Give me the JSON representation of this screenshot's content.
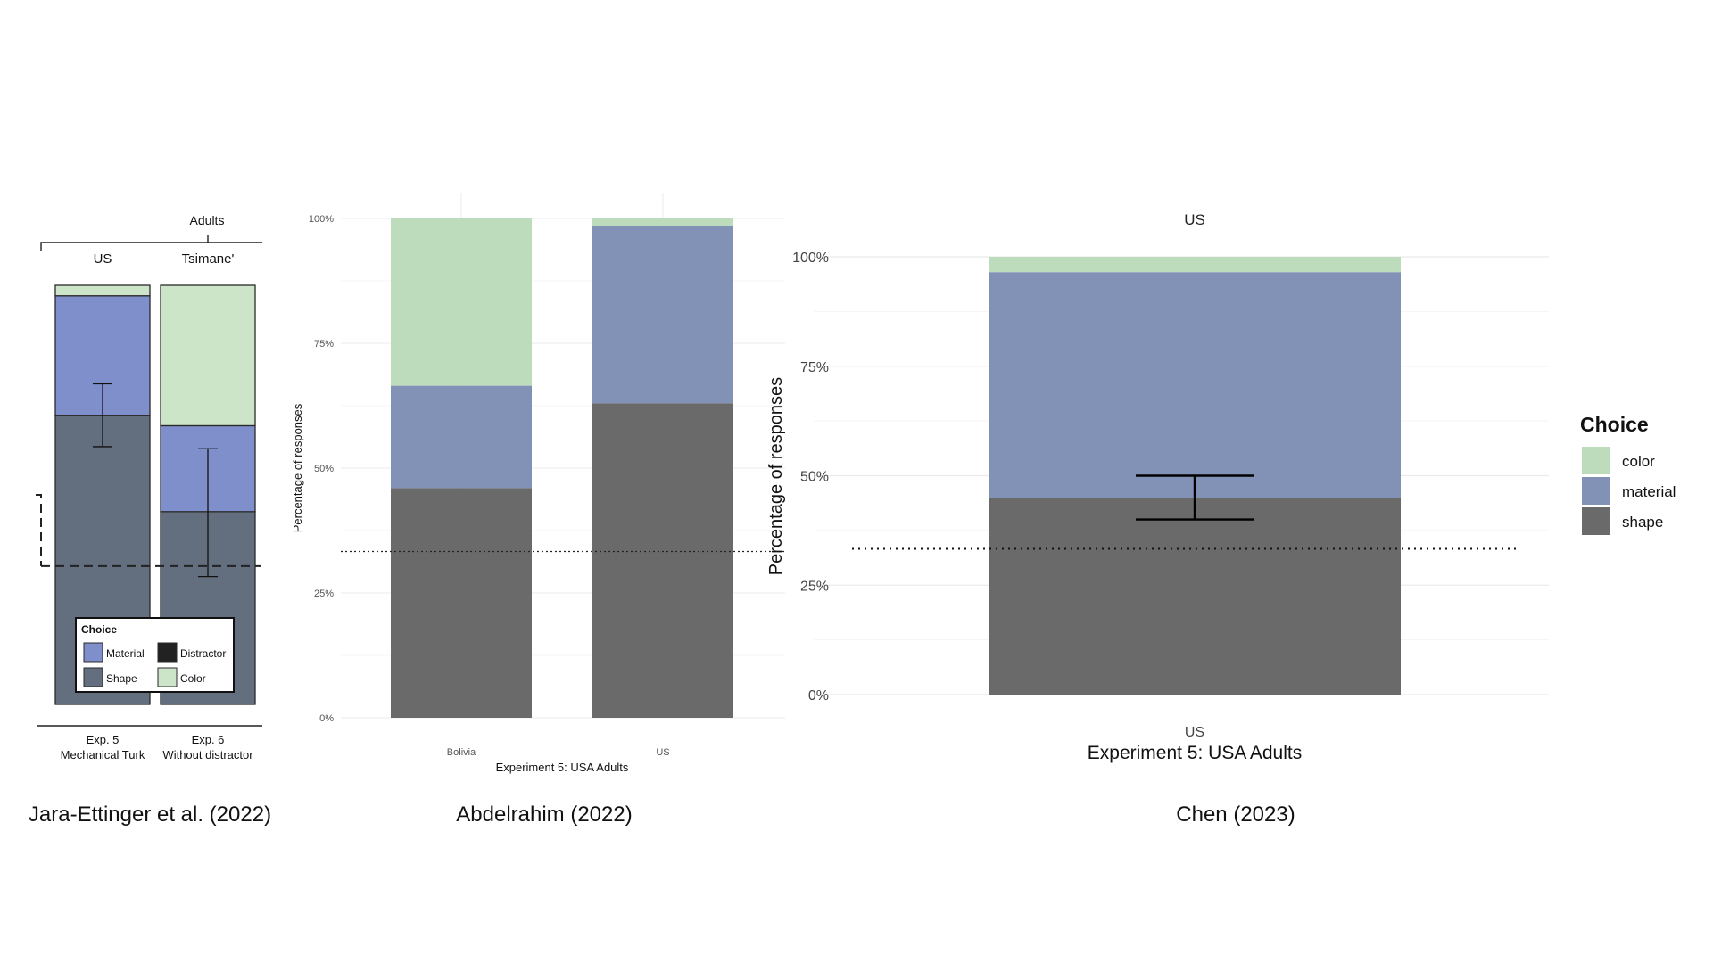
{
  "captions": {
    "left": "Jara-Ettinger et al. (2022)",
    "middle": "Abdelrahim (2022)",
    "right": "Chen (2023)"
  },
  "chart_data": [
    {
      "type": "bar",
      "stacked": true,
      "top_header": "Adults",
      "group_labels": [
        "US",
        "Tsimane'"
      ],
      "categories": [
        "Exp. 5\nMechanical Turk",
        "Exp. 6\nWithout distractor"
      ],
      "series": [
        {
          "name": "Shape",
          "values": [
            0.69,
            0.46
          ],
          "color": "#636e7f"
        },
        {
          "name": "Material",
          "values": [
            0.285,
            0.205
          ],
          "color": "#7f8fcb"
        },
        {
          "name": "Color",
          "values": [
            0.025,
            0.335
          ],
          "color": "#cce5c8"
        },
        {
          "name": "Distractor",
          "values": [
            0,
            0
          ],
          "color": "#222222"
        }
      ],
      "error_bars": [
        {
          "center": 0.69,
          "low": 0.615,
          "high": 0.765
        },
        {
          "center": 0.46,
          "low": 0.305,
          "high": 0.61
        }
      ],
      "reference_line": 0.33,
      "legend": {
        "title": "Choice",
        "items": [
          "Material",
          "Distractor",
          "Shape",
          "Color"
        ],
        "placement": "bottom-center"
      },
      "ylim": [
        0,
        1
      ]
    },
    {
      "type": "bar",
      "stacked": true,
      "categories": [
        "Bolivia",
        "US"
      ],
      "series": [
        {
          "name": "shape",
          "values": [
            0.46,
            0.63
          ],
          "color": "#6b6a6b"
        },
        {
          "name": "material",
          "values": [
            0.205,
            0.355
          ],
          "color": "#8291b6"
        },
        {
          "name": "color",
          "values": [
            0.335,
            0.015
          ],
          "color": "#bcdcbc"
        }
      ],
      "xlabel": "Experiment 5: USA Adults",
      "ylabel": "Percentage of responses",
      "yticks": [
        "0%",
        "25%",
        "50%",
        "75%",
        "100%"
      ],
      "reference_line": 0.333,
      "ylim": [
        0,
        1
      ]
    },
    {
      "type": "bar",
      "stacked": true,
      "facet_label": "US",
      "categories": [
        "US"
      ],
      "series": [
        {
          "name": "shape",
          "values": [
            0.45
          ],
          "color": "#6b6a6b"
        },
        {
          "name": "material",
          "values": [
            0.515
          ],
          "color": "#8291b6"
        },
        {
          "name": "color",
          "values": [
            0.035
          ],
          "color": "#bcdcbc"
        }
      ],
      "error_bars": [
        {
          "center": 0.45,
          "low": 0.4,
          "high": 0.5
        }
      ],
      "xlabel": "Experiment 5: USA Adults",
      "ylabel": "Percentage of responses",
      "yticks": [
        "0%",
        "25%",
        "50%",
        "75%",
        "100%"
      ],
      "reference_line": 0.333,
      "legend": {
        "title": "Choice",
        "items": [
          "color",
          "material",
          "shape"
        ],
        "placement": "right"
      },
      "ylim": [
        0,
        1
      ]
    }
  ]
}
